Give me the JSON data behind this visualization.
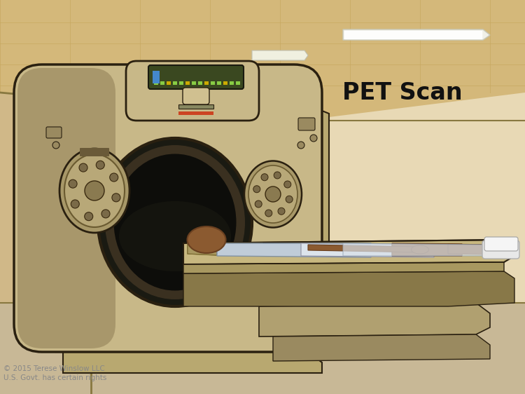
{
  "title": "PET Scan",
  "title_fontsize": 24,
  "title_fontweight": "bold",
  "copyright_text": "© 2015 Terese Winslow LLC\nU.S. Govt. has certain rights",
  "copyright_fontsize": 7.5,
  "figsize": [
    7.5,
    5.62
  ],
  "dpi": 100,
  "wall_color": "#e8d9b5",
  "wall_right_color": "#f0e4c4",
  "ceiling_color": "#d4b87a",
  "ceiling_tile_color": "#c8a860",
  "floor_color": "#c8b896",
  "floor_dark": "#b0a080",
  "scanner_main": "#c8b888",
  "scanner_mid": "#b8a870",
  "scanner_dark": "#8a7850",
  "scanner_shadow": "#6a5a38",
  "scanner_outline": "#2a2010",
  "scanner_hole_outer": "#1a1a12",
  "scanner_hole_inner": "#252015",
  "scanner_ring": "#3a3020",
  "table_top": "#c8b880",
  "table_side": "#a89860",
  "table_dark": "#887848",
  "table_base": "#b0a070",
  "skin_color": "#8B5A30",
  "skin_dark": "#6a4020",
  "gown_blue": "#c0ccd8",
  "gown_white": "#dce4ec",
  "gown_shadow": "#a8b8c8",
  "pillow_color": "#c8b880",
  "pillow_shadow": "#a89860",
  "sock_color": "#e8e8e8",
  "display_bg": "#3a4820",
  "display_green": "#88cc44",
  "display_blue": "#4488cc"
}
